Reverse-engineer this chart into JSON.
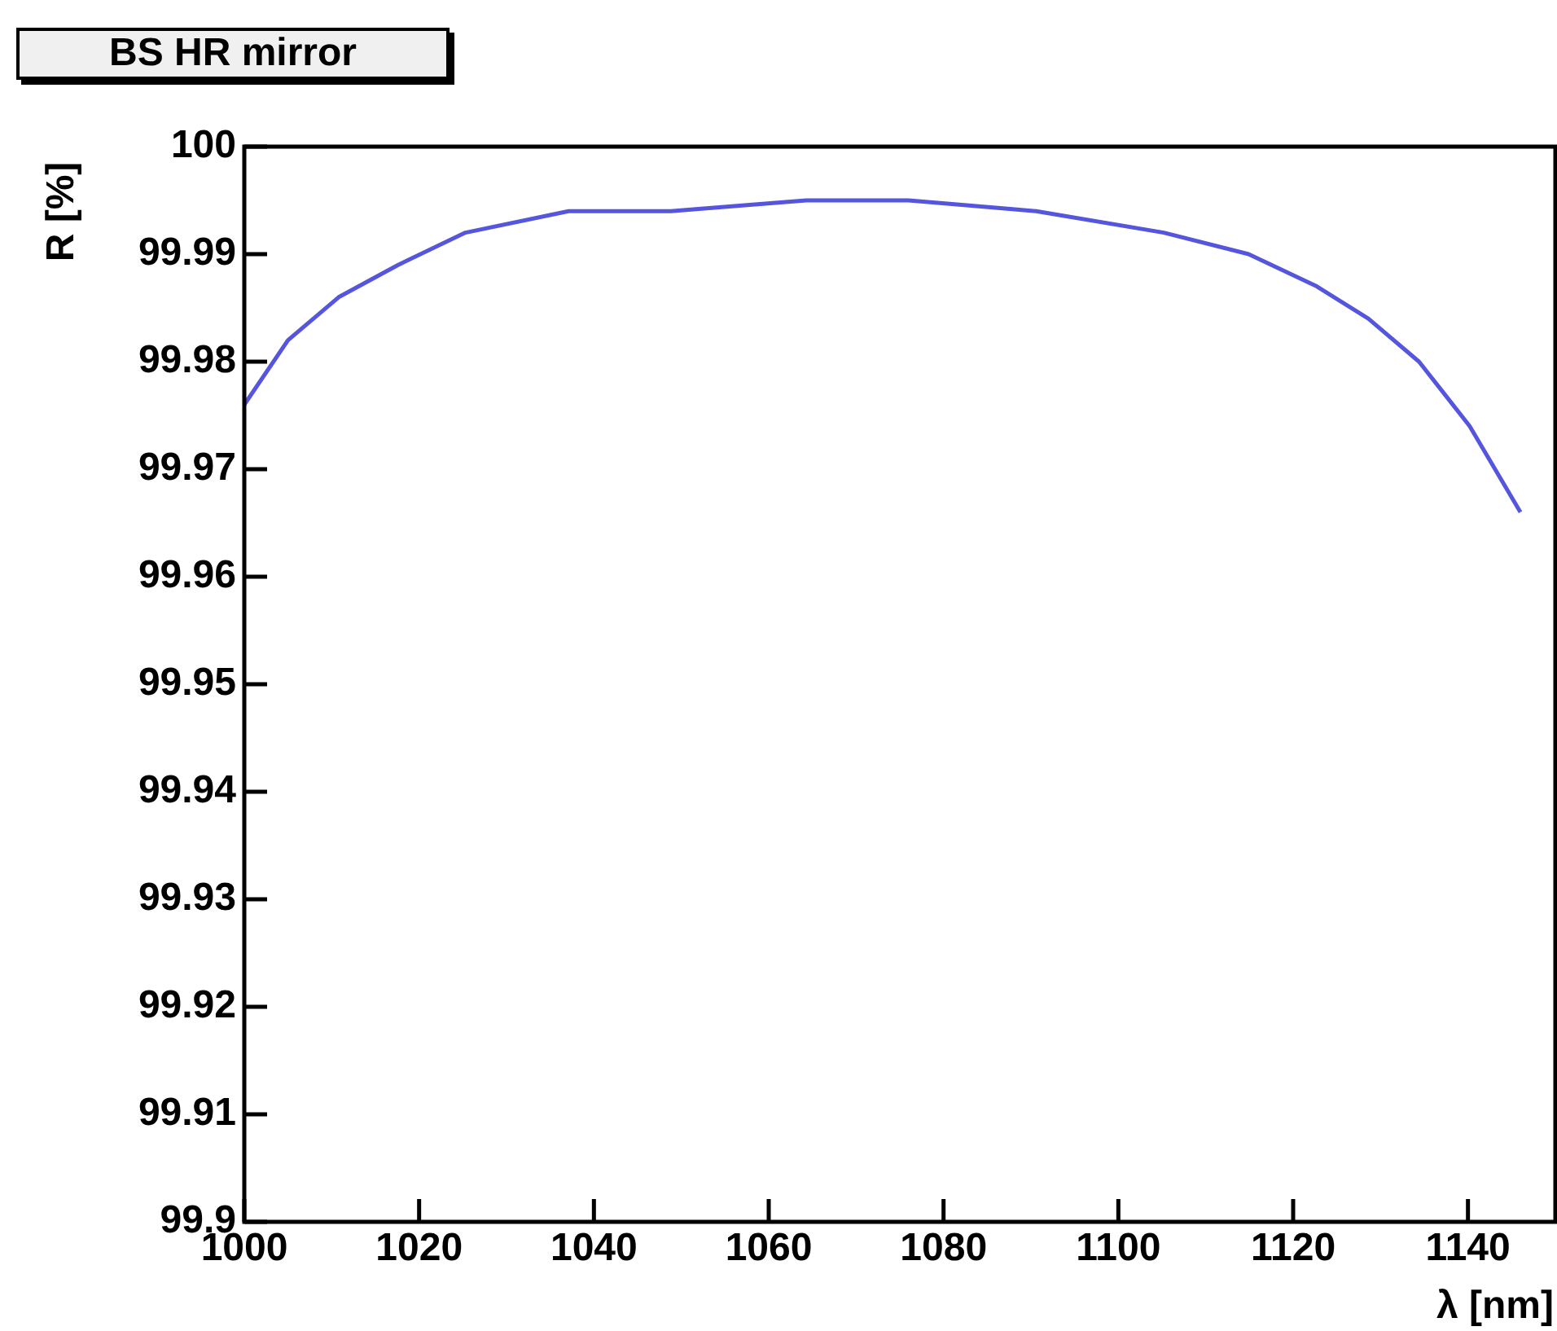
{
  "chart_data": {
    "type": "line",
    "title": "BS HR mirror",
    "xlabel": "λ [nm]",
    "ylabel": "R [%]",
    "x": [
      1000,
      1005,
      1010.8,
      1017.6,
      1025.3,
      1037.1,
      1048.8,
      1064.3,
      1076,
      1090.6,
      1105.2,
      1114.9,
      1122.7,
      1128.6,
      1134.4,
      1140.2,
      1146
    ],
    "series": [
      {
        "color": "#5555dd",
        "values": [
          99.976,
          99.982,
          99.986,
          99.989,
          99.992,
          99.994,
          99.994,
          99.995,
          99.995,
          99.994,
          99.992,
          99.99,
          99.987,
          99.984,
          99.98,
          99.974,
          99.966
        ]
      }
    ],
    "xlim": [
      1000,
      1150
    ],
    "ylim": [
      99.9,
      100
    ],
    "xticks": [
      1000,
      1020,
      1040,
      1060,
      1080,
      1100,
      1120,
      1140
    ],
    "yticks": [
      {
        "value": 99.9,
        "label": "99.9"
      },
      {
        "value": 99.91,
        "label": "99.91"
      },
      {
        "value": 99.92,
        "label": "99.92"
      },
      {
        "value": 99.93,
        "label": "99.93"
      },
      {
        "value": 99.94,
        "label": "99.94"
      },
      {
        "value": 99.95,
        "label": "99.95"
      },
      {
        "value": 99.96,
        "label": "99.96"
      },
      {
        "value": 99.97,
        "label": "99.97"
      },
      {
        "value": 99.98,
        "label": "99.98"
      },
      {
        "value": 99.99,
        "label": "99.99"
      },
      {
        "value": 100,
        "label": "100"
      }
    ],
    "grid": false,
    "legend": false,
    "marker": "none",
    "line_style": "solid"
  }
}
